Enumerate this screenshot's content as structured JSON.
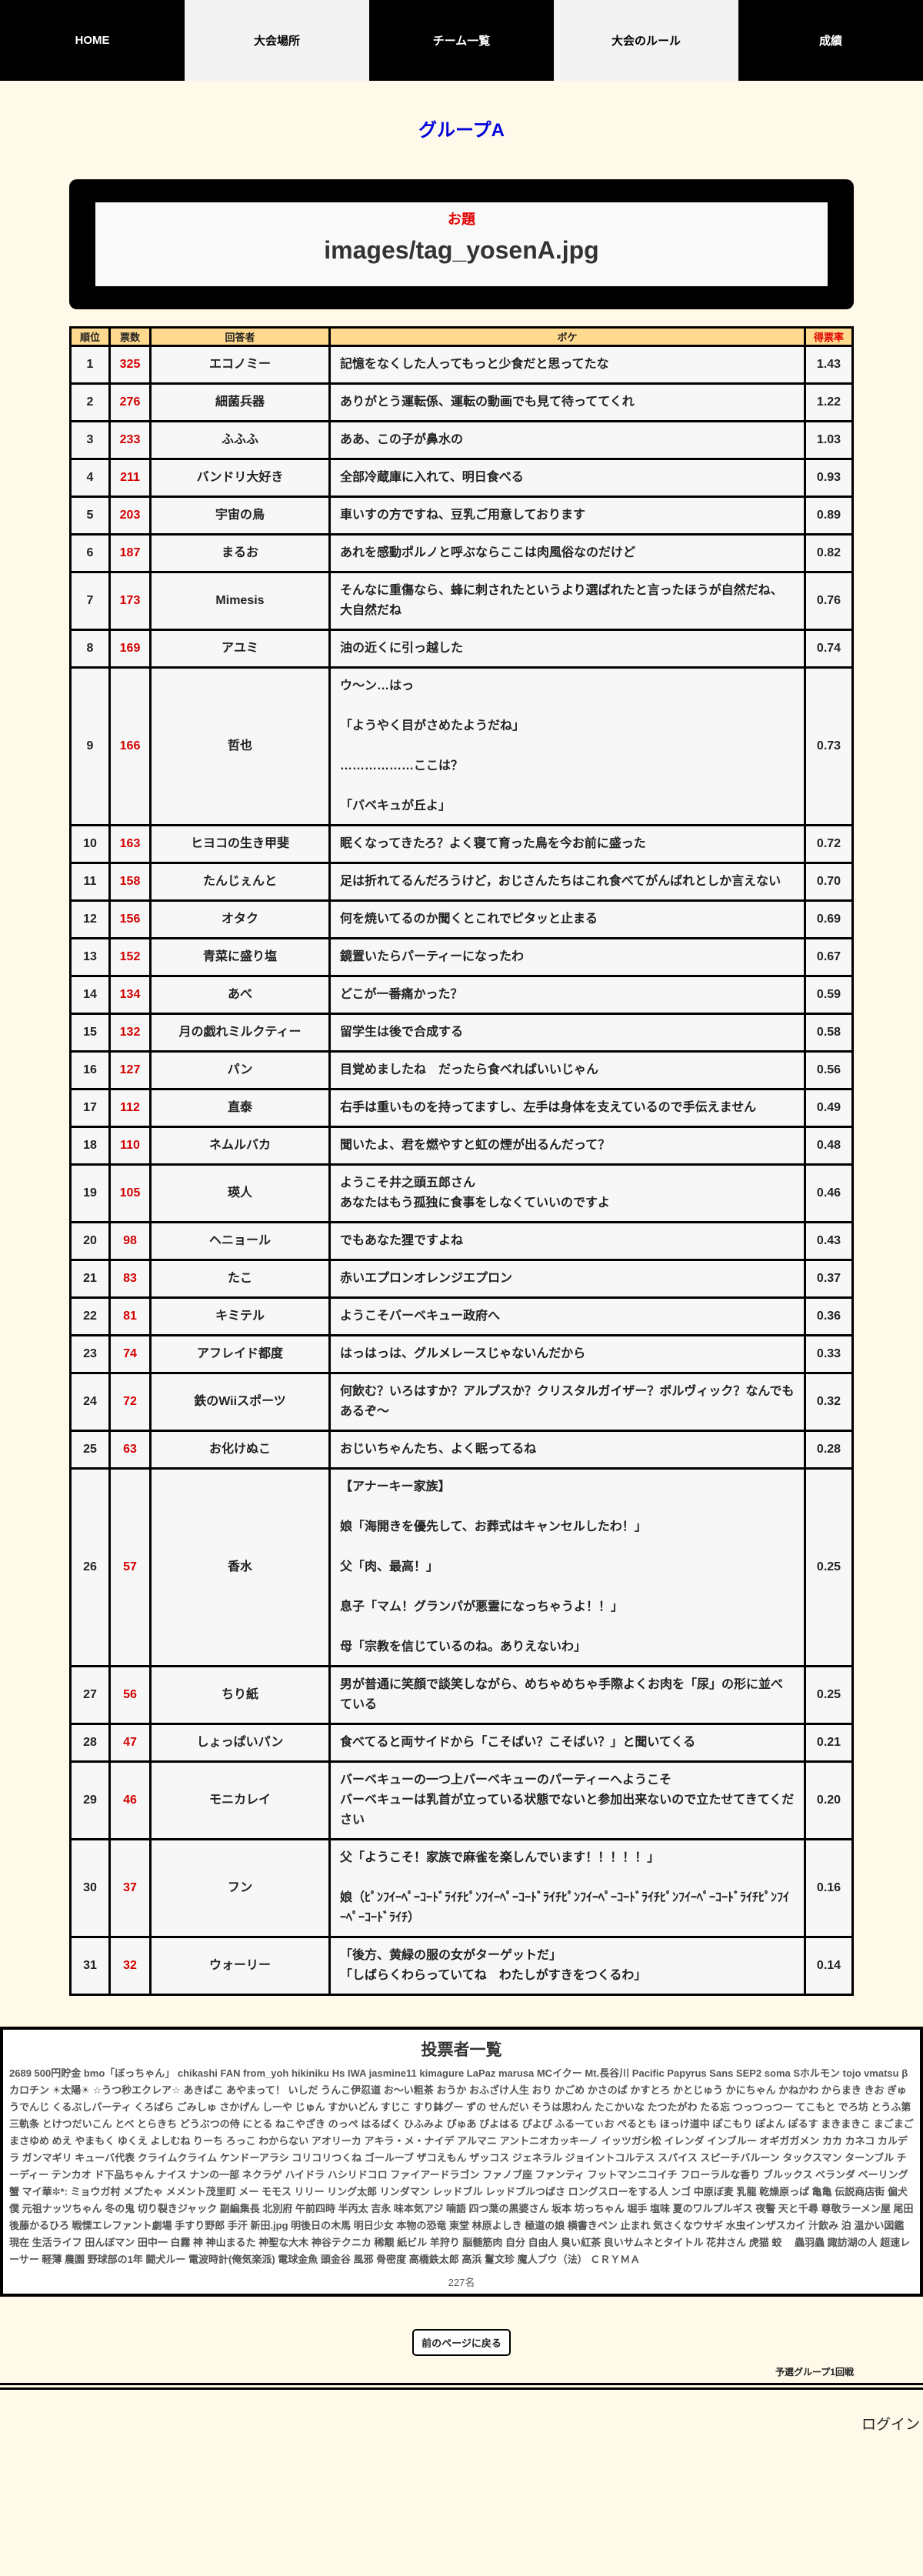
{
  "nav": [
    {
      "label": "HOME",
      "theme": "dark"
    },
    {
      "label": "大会場所",
      "theme": "light"
    },
    {
      "label": "チーム一覧",
      "theme": "dark"
    },
    {
      "label": "大会のルール",
      "theme": "light"
    },
    {
      "label": "成績",
      "theme": "dark"
    }
  ],
  "group_title": "グループA",
  "odai": {
    "label": "お題",
    "value": "images/tag_yosenA.jpg"
  },
  "table": {
    "headers": {
      "rank": "順位",
      "votes": "票数",
      "name": "回答者",
      "boke": "ボケ",
      "rate": "得票率"
    },
    "rows": [
      {
        "rank": "1",
        "votes": "325",
        "name": "エコノミー",
        "boke": [
          "記憶をなくした人ってもっと少食だと思ってたな"
        ],
        "rate": "1.43"
      },
      {
        "rank": "2",
        "votes": "276",
        "name": "細菌兵器",
        "boke": [
          "ありがとう運転係、運転の動画でも見て待っててくれ"
        ],
        "rate": "1.22"
      },
      {
        "rank": "3",
        "votes": "233",
        "name": "ふふふ",
        "boke": [
          "ああ、この子が鼻水の"
        ],
        "rate": "1.03"
      },
      {
        "rank": "4",
        "votes": "211",
        "name": "バンドリ大好き",
        "boke": [
          "全部冷蔵庫に入れて、明日食べる"
        ],
        "rate": "0.93"
      },
      {
        "rank": "5",
        "votes": "203",
        "name": "宇宙の鳥",
        "boke": [
          "車いすの方ですね、豆乳ご用意しております"
        ],
        "rate": "0.89"
      },
      {
        "rank": "6",
        "votes": "187",
        "name": "まるお",
        "boke": [
          "あれを感動ポルノと呼ぶならここは肉風俗なのだけど"
        ],
        "rate": "0.82"
      },
      {
        "rank": "7",
        "votes": "173",
        "name": "Mimesis",
        "boke": [
          "そんなに重傷なら、蜂に刺されたというより選ばれたと言ったほうが自然だね、大自然だね"
        ],
        "rate": "0.76"
      },
      {
        "rank": "8",
        "votes": "169",
        "name": "アユミ",
        "boke": [
          "油の近くに引っ越した"
        ],
        "rate": "0.74"
      },
      {
        "rank": "9",
        "votes": "166",
        "name": "哲也",
        "boke": [
          "ウ〜ン…はっ",
          "",
          "「ようやく目がさめたようだね」",
          "",
          "………………ここは？",
          "",
          "「バベキュが丘よ」"
        ],
        "rate": "0.73"
      },
      {
        "rank": "10",
        "votes": "163",
        "name": "ヒヨコの生き甲斐",
        "boke": [
          "眠くなってきたろ？よく寝て育った鳥を今お前に盛った"
        ],
        "rate": "0.72"
      },
      {
        "rank": "11",
        "votes": "158",
        "name": "たんじぇんと",
        "boke": [
          "足は折れてるんだろうけど，おじさんたちはこれ食べてがんばれとしか言えない"
        ],
        "rate": "0.70"
      },
      {
        "rank": "12",
        "votes": "156",
        "name": "オタク",
        "boke": [
          "何を焼いてるのか聞くとこれでピタッと止まる"
        ],
        "rate": "0.69"
      },
      {
        "rank": "13",
        "votes": "152",
        "name": "青菜に盛り塩",
        "boke": [
          "鏡置いたらパーティーになったわ"
        ],
        "rate": "0.67"
      },
      {
        "rank": "14",
        "votes": "134",
        "name": "あべ",
        "boke": [
          "どこが一番痛かった？"
        ],
        "rate": "0.59"
      },
      {
        "rank": "15",
        "votes": "132",
        "name": "月の戯れミルクティー",
        "boke": [
          "留学生は後で合成する"
        ],
        "rate": "0.58"
      },
      {
        "rank": "16",
        "votes": "127",
        "name": "パン",
        "boke": [
          "目覚めましたね　だったら食べればいいじゃん"
        ],
        "rate": "0.56"
      },
      {
        "rank": "17",
        "votes": "112",
        "name": "直泰",
        "boke": [
          "右手は重いものを持ってますし、左手は身体を支えているので手伝えません"
        ],
        "rate": "0.49"
      },
      {
        "rank": "18",
        "votes": "110",
        "name": "ネムルバカ",
        "boke": [
          "聞いたよ、君を燃やすと虹の煙が出るんだって？"
        ],
        "rate": "0.48"
      },
      {
        "rank": "19",
        "votes": "105",
        "name": "瑛人",
        "boke": [
          "ようこそ井之頭五郎さん",
          "あなたはもう孤独に食事をしなくていいのですよ"
        ],
        "rate": "0.46"
      },
      {
        "rank": "20",
        "votes": "98",
        "name": "ヘニョール",
        "boke": [
          "でもあなた狸ですよね"
        ],
        "rate": "0.43"
      },
      {
        "rank": "21",
        "votes": "83",
        "name": "たこ",
        "boke": [
          "赤いエプロンオレンジエプロン"
        ],
        "rate": "0.37"
      },
      {
        "rank": "22",
        "votes": "81",
        "name": "キミテル",
        "boke": [
          "ようこそバーベキュー政府へ"
        ],
        "rate": "0.36"
      },
      {
        "rank": "23",
        "votes": "74",
        "name": "アフレイド都度",
        "boke": [
          "はっはっは、グルメレースじゃないんだから"
        ],
        "rate": "0.33"
      },
      {
        "rank": "24",
        "votes": "72",
        "name": "鉄のWiiスポーツ",
        "boke": [
          "何飲む？いろはすか？アルプスか？クリスタルガイザー？ボルヴィック？なんでもあるぞ〜"
        ],
        "rate": "0.32"
      },
      {
        "rank": "25",
        "votes": "63",
        "name": "お化けぬこ",
        "boke": [
          "おじいちゃんたち、よく眠ってるね"
        ],
        "rate": "0.28"
      },
      {
        "rank": "26",
        "votes": "57",
        "name": "香水",
        "boke": [
          "【アナーキー家族】",
          "",
          "娘「海開きを優先して、お葬式はキャンセルしたわ！」",
          "",
          "父「肉、最高！」",
          "",
          "息子「マム！グランパが悪霊になっちゃうよ！！」",
          "",
          "母「宗教を信じているのね。ありえないわ」"
        ],
        "rate": "0.25"
      },
      {
        "rank": "27",
        "votes": "56",
        "name": "ちり紙",
        "boke": [
          "男が普通に笑顔で談笑しながら、めちゃめちゃ手際よくお肉を「尿」の形に並べている"
        ],
        "rate": "0.25"
      },
      {
        "rank": "28",
        "votes": "47",
        "name": "しょっぱいパン",
        "boke": [
          "食べてると両サイドから「こそばい？こそばい？」と聞いてくる"
        ],
        "rate": "0.21"
      },
      {
        "rank": "29",
        "votes": "46",
        "name": "モニカレイ",
        "boke": [
          "バーベキューの一つ上バーベキューのパーティーへようこそ",
          "バーベキューは乳首が立っている状態でないと参加出来ないので立たせてきてください"
        ],
        "rate": "0.20"
      },
      {
        "rank": "30",
        "votes": "37",
        "name": "フン",
        "boke": [
          "父「ようこそ！家族で麻雀を楽しんでいます！！！！！」",
          "",
          "娘（ﾋﾟﾝﾌｲｰﾍﾟｰｺｰﾄﾞﾗｲﾁﾋﾟﾝﾌｲｰﾍﾟｰｺｰﾄﾞﾗｲﾁﾋﾟﾝﾌｲｰﾍﾟｰｺｰﾄﾞﾗｲﾁﾋﾟﾝﾌｲｰﾍﾟｰｺｰﾄﾞﾗｲﾁﾋﾟﾝﾌｲｰﾍﾟｰｺｰﾄﾞﾗｲﾁ）"
        ],
        "rate": "0.16"
      },
      {
        "rank": "31",
        "votes": "32",
        "name": "ウォーリー",
        "boke": [
          "「後方、黄緑の服の女がターゲットだ」",
          "「しばらくわらっていてね　わたしがすきをつくるわ」"
        ],
        "rate": "0.14"
      }
    ]
  },
  "voters": {
    "title": "投票者一覧",
    "list": "2689 500円貯金 bmo「ぼっちゃん」 chikashi FAN from_yoh hikiniku Hs IWA jasmine11 kimagure LaPaz marusa MCイクー Mt.長谷川 Pacific Papyrus Sans SEP2 soma Sホルモン tojo vmatsu βカロチン ☀太陽☀ ☆うつ秒エクレア☆ あきばこ あやまって！ いしだ うんこ伊忍道 お〜い粗茶 おうか おふざけ人生 おり かごめ かさのば かすとろ かとじゅう かにちゃん かねかわ からまき きお ぎゅうでんじ くるぶしパーティ くろばら ごみしゅ さかげん しーや じゅん すかいどん すじこ すり鉢グー ずの せんだい そうは思わん たこかいな たつたがわ たる忘 つっつっつー てこもと でろ坊 とうふ第三軌条 とけつだいこん とべ とらきち どうぶつの侍 にとる ねこやざき のっぺ はるばく ひふみよ ぴゅあ ぴよはる ぴよぴ ふるーてぃお ぺるとも ほっけ道中 ぽこもり ぽよん ぽるす まきまきこ まごまご まさゆめ めえ やまもく ゆくえ よしむね りーち ろっこ わからない アオリーカ アキラ・メ・ナイデ アルマニ アントニオカッキーノ イッツガシ松 イレンダ インブルー オギガガメン カカ カネコ カルデラ ガンマギリ キューバ代表 クライムクライム ケンドーアラシ コリコリつくね ゴールーブ ザコえもん ザッコス ジェネラル ジョイントコルテス スパイス スピーチバルーン タックスマン ターンブル チーディー テンカオ ド下品ちゃん ナイス ナンの一部 ネクラゲ ハイドラ ハシリドコロ ファイアードラゴン ファノブ座 ファンティ フットマンニコイチ フローラルな香り ブルックス ベランダ ベーリング蟹 マイ華✼*: ミョウガ村 メプたゃ メメント茂里町 メー モモス リリー リング太郎 リンダマン レッドブル レッドブルつばさ ロングスローをする人 ンゴ 中原ぼ麦 乳龍 乾燥原っぱ 亀亀 伝説商店街 偏犬 僕 元祖ナッツちゃん 冬の鬼 切り裂きジャック 副編集長 北別府 午前四時 半丙太 吉永 味本気アジ 喃語 四つ葉の黒婆さん 坂本 坊っちゃん 堀手 塩味 夏のワルプルギス 夜警 天と千尋 尊敬ラーメン屋 尾田 後藤かるひろ 戦慄エレファント劇場 手すり野郎 手汗 新田.jpg 明後日の木馬 明日少女 本物の恐竜 東堂 林原よしき 極道の娘 横書きペン 止まれ 気さくなウサギ 水虫インザスカイ 汁飲み 泊 温かい図鑑 現在 生活ライフ 田んぼマン 田中一 白霧 神 神山まるた 神聖な大木 神谷テクニカ 稀覯 紙ビル 羊狩り 脳髄筋肉 自分 自由人 臭い紅茶 良いサムネとタイトル 花井さん 虎猫 蛟 　蟲羽蟲 諏訪湖の人 超速レーサー 軽薄 農園 野球部の1年 闘犬ルー 電波時計(俺気楽派) 電球金魚 頭金谷 風邪 骨密度 高橋鉄太郎 高浜 鬘文珍 魔人ブウ（法） ＣＲＹＭＡ",
    "count": "227名"
  },
  "footer": {
    "back_label": "前のページに戻る",
    "round_label": "予選グループ1回戦",
    "login_label": "ログイン"
  },
  "colors": {
    "accent_blue": "#0000dd",
    "accent_red": "#e00000",
    "header_bg": "#ffd98e",
    "page_bg": "#fef9e8"
  }
}
